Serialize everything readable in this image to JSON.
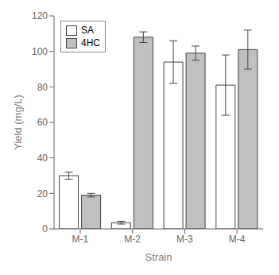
{
  "chart_data": {
    "type": "bar",
    "categories": [
      "M-1",
      "M-2",
      "M-3",
      "M-4"
    ],
    "series": [
      {
        "name": "SA",
        "color": "#ffffff",
        "values": [
          30,
          3.5,
          94,
          81
        ],
        "errors": [
          2.0,
          0.8,
          12,
          17
        ]
      },
      {
        "name": "4HC",
        "color": "#c0c0c0",
        "values": [
          19,
          108,
          99,
          101
        ],
        "errors": [
          1.0,
          3.0,
          4.0,
          11
        ]
      }
    ],
    "xlabel": "Strain",
    "ylabel": "Yield (mg/L)",
    "ylim": [
      0,
      120
    ],
    "yticks": [
      0,
      20,
      40,
      60,
      80,
      100,
      120
    ],
    "legend": "upper left",
    "grid": false
  }
}
